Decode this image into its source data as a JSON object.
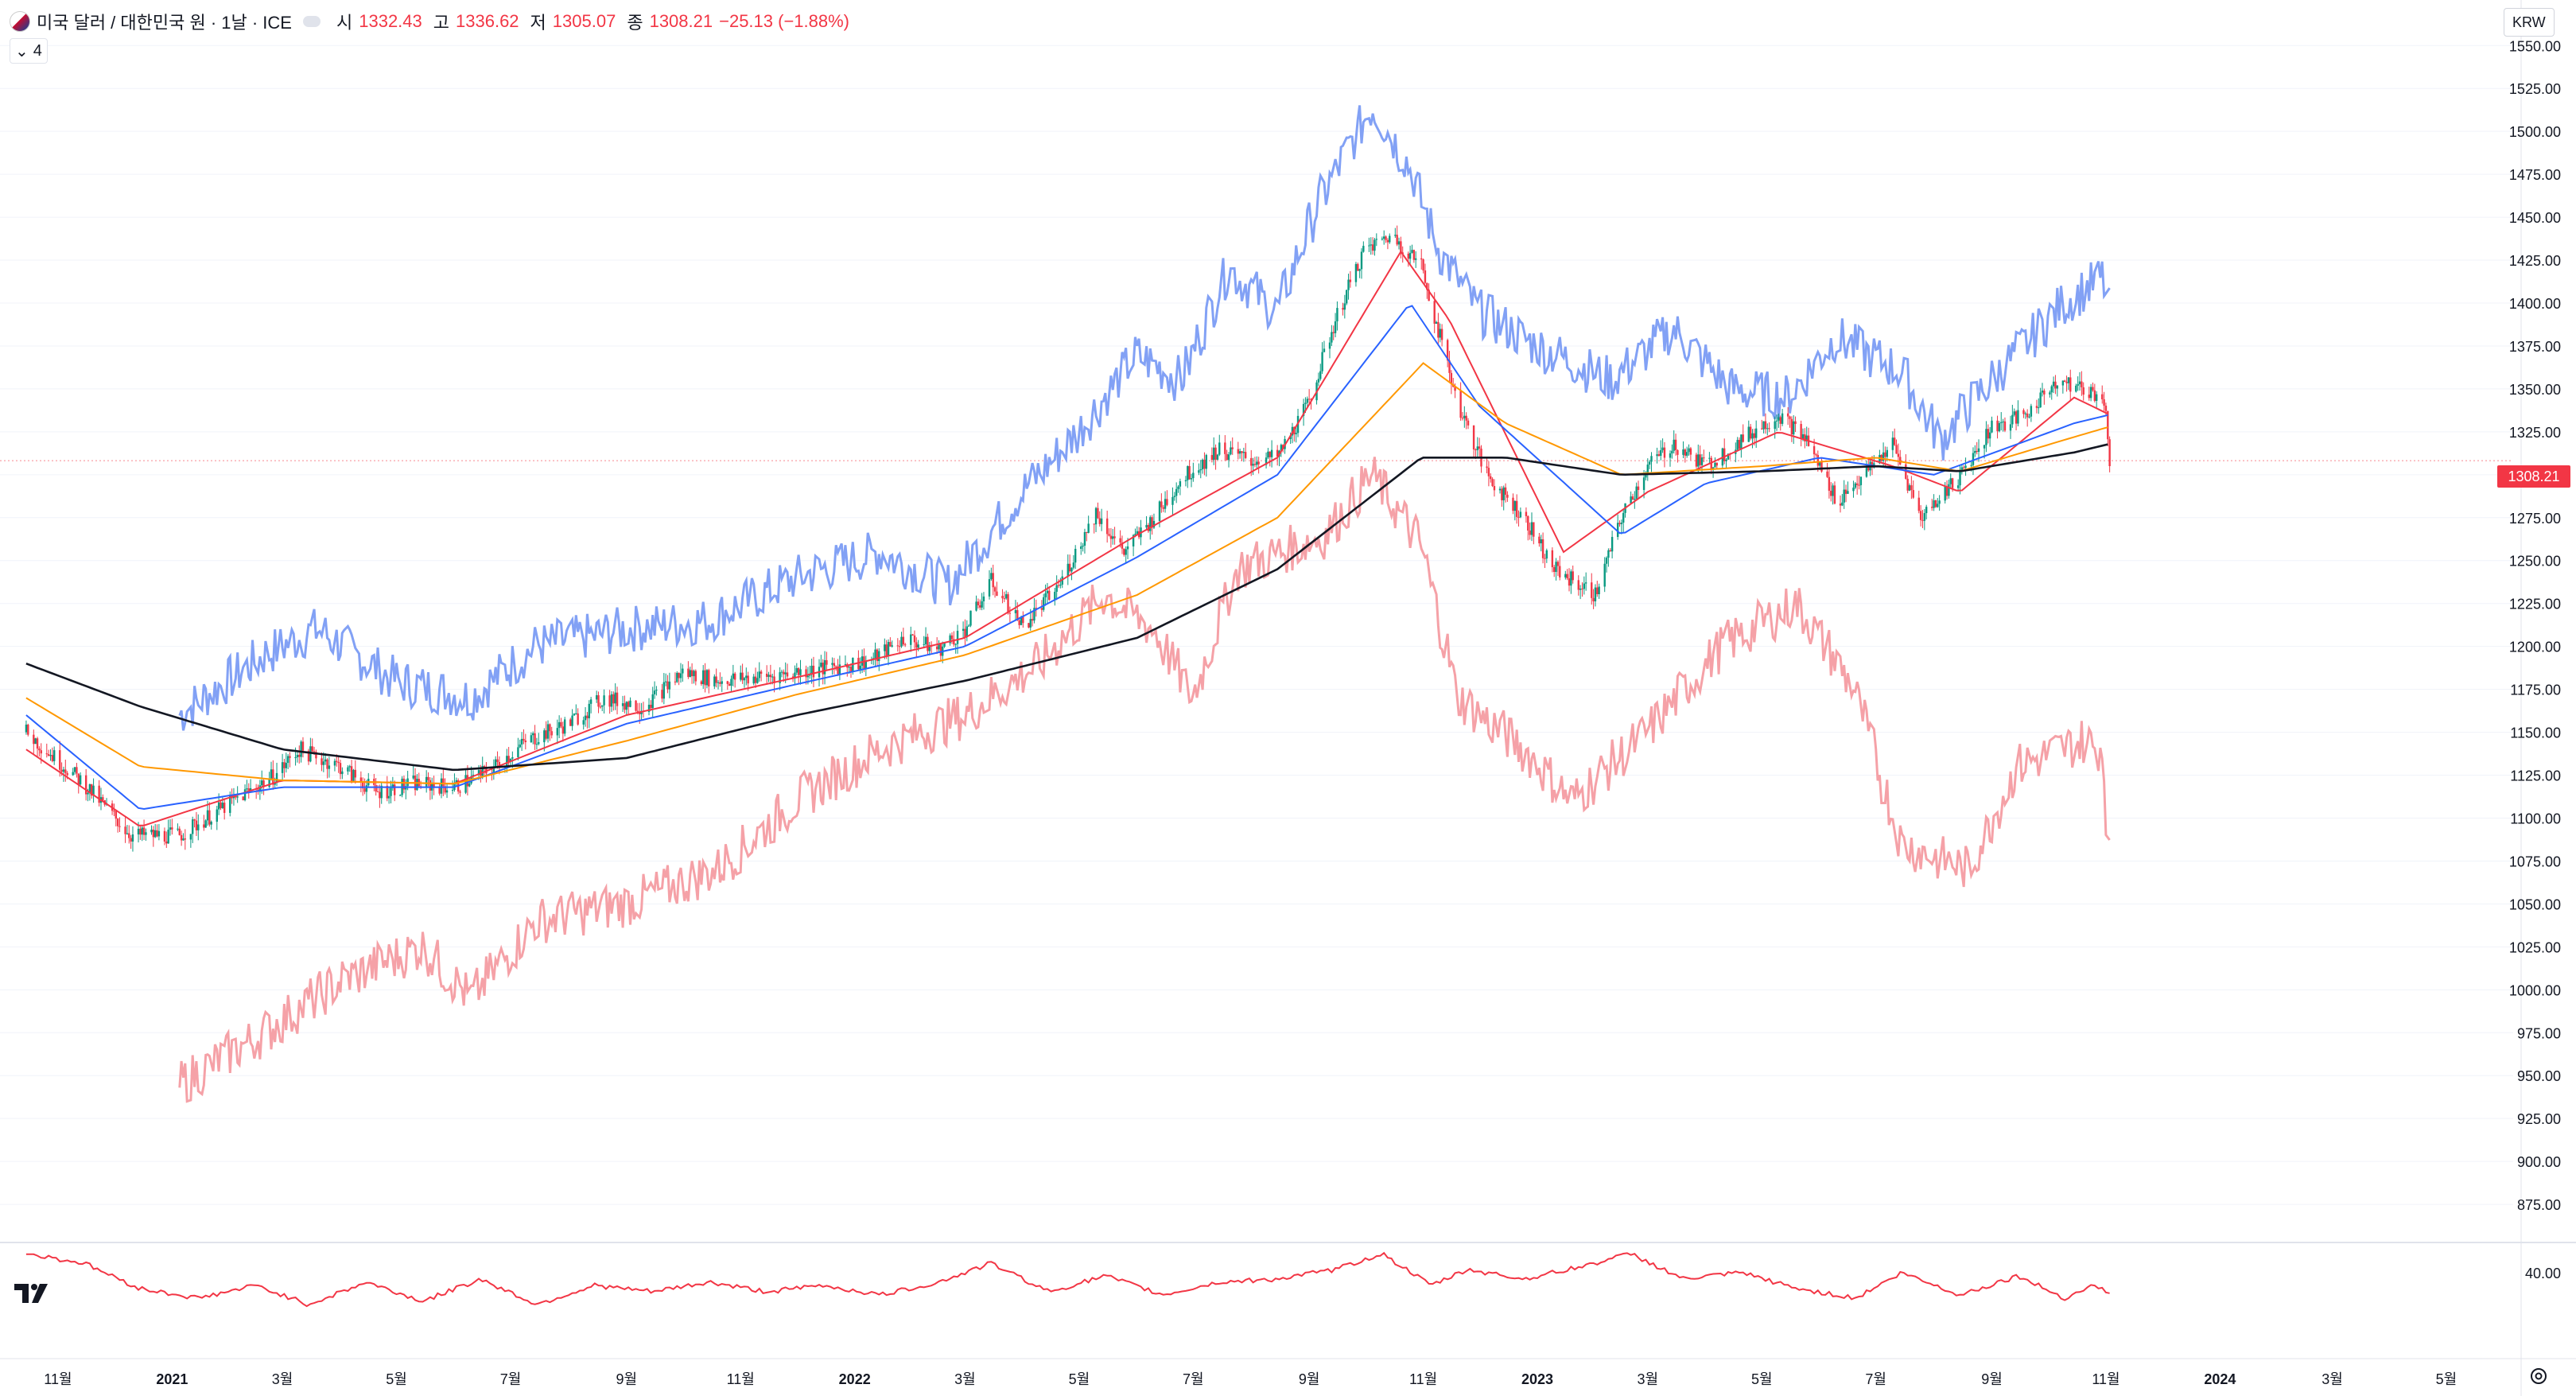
{
  "header": {
    "title": "미국 달러 / 대한민국 원 · 1날 · ICE",
    "ohlc": [
      {
        "label": "시",
        "value": "1332.43"
      },
      {
        "label": "고",
        "value": "1336.62"
      },
      {
        "label": "저",
        "value": "1305.07"
      },
      {
        "label": "종",
        "value": "1308.21"
      }
    ],
    "change": "−25.13 (−1.88%)",
    "indicator_count": "4",
    "collapse_icon": "chevron-down-icon",
    "flag_icon": "us-kr-flag-icon"
  },
  "currency_button": "KRW",
  "last_price": "1308.21",
  "colors": {
    "up": "#089981",
    "down": "#f23645",
    "ma_red": "#f23645",
    "ma_blue": "#2962ff",
    "ma_orange": "#ff9800",
    "ma_black": "#131722",
    "compare_blue": "#7b9cf4",
    "compare_red": "#f49ca2",
    "oscillator": "#f23645"
  },
  "chart_data": {
    "type": "candlestick",
    "y_axis_label": "KRW",
    "ylim": [
      863,
      1558
    ],
    "y_ticks": [
      "1550.00",
      "1525.00",
      "1500.00",
      "1475.00",
      "1450.00",
      "1425.00",
      "1400.00",
      "1375.00",
      "1350.00",
      "1325.00",
      "1300.00",
      "1275.00",
      "1250.00",
      "1225.00",
      "1200.00",
      "1175.00",
      "1150.00",
      "1125.00",
      "1100.00",
      "1075.00",
      "1050.00",
      "1025.00",
      "1000.00",
      "975.00",
      "950.00",
      "925.00",
      "900.00",
      "875.00"
    ],
    "x_ticks": [
      {
        "label": "11월",
        "date": "2020-11"
      },
      {
        "label": "2021",
        "date": "2021-01"
      },
      {
        "label": "3월",
        "date": "2021-03"
      },
      {
        "label": "5월",
        "date": "2021-05"
      },
      {
        "label": "7월",
        "date": "2021-07"
      },
      {
        "label": "9월",
        "date": "2021-09"
      },
      {
        "label": "11월",
        "date": "2021-11"
      },
      {
        "label": "2022",
        "date": "2022-01"
      },
      {
        "label": "3월",
        "date": "2022-03"
      },
      {
        "label": "5월",
        "date": "2022-05"
      },
      {
        "label": "7월",
        "date": "2022-07"
      },
      {
        "label": "9월",
        "date": "2022-09"
      },
      {
        "label": "11월",
        "date": "2022-11"
      },
      {
        "label": "2023",
        "date": "2023-01"
      },
      {
        "label": "3월",
        "date": "2023-03"
      },
      {
        "label": "5월",
        "date": "2023-05"
      },
      {
        "label": "7월",
        "date": "2023-07"
      },
      {
        "label": "9월",
        "date": "2023-09"
      },
      {
        "label": "11월",
        "date": "2023-11"
      },
      {
        "label": "2024",
        "date": "2024-01"
      },
      {
        "label": "3월",
        "date": "2024-03"
      },
      {
        "label": "5월",
        "date": "2024-05"
      }
    ],
    "price_path": [
      [
        "2020-10-15",
        1150
      ],
      [
        "2020-11-15",
        1120
      ],
      [
        "2020-12-10",
        1090
      ],
      [
        "2021-01-05",
        1090
      ],
      [
        "2021-02-10",
        1115
      ],
      [
        "2021-02-25",
        1125
      ],
      [
        "2021-03-10",
        1140
      ],
      [
        "2021-04-01",
        1130
      ],
      [
        "2021-04-20",
        1115
      ],
      [
        "2021-05-10",
        1120
      ],
      [
        "2021-06-01",
        1118
      ],
      [
        "2021-06-20",
        1128
      ],
      [
        "2021-07-10",
        1145
      ],
      [
        "2021-08-01",
        1155
      ],
      [
        "2021-08-20",
        1170
      ],
      [
        "2021-09-10",
        1165
      ],
      [
        "2021-10-01",
        1185
      ],
      [
        "2021-10-20",
        1180
      ],
      [
        "2021-11-10",
        1182
      ],
      [
        "2021-12-01",
        1185
      ],
      [
        "2021-12-20",
        1188
      ],
      [
        "2022-01-10",
        1192
      ],
      [
        "2022-01-28",
        1205
      ],
      [
        "2022-02-15",
        1198
      ],
      [
        "2022-03-01",
        1210
      ],
      [
        "2022-03-15",
        1238
      ],
      [
        "2022-04-01",
        1212
      ],
      [
        "2022-04-20",
        1235
      ],
      [
        "2022-05-10",
        1278
      ],
      [
        "2022-05-25",
        1255
      ],
      [
        "2022-06-10",
        1275
      ],
      [
        "2022-06-25",
        1298
      ],
      [
        "2022-07-15",
        1315
      ],
      [
        "2022-08-01",
        1308
      ],
      [
        "2022-08-15",
        1310
      ],
      [
        "2022-08-31",
        1340
      ],
      [
        "2022-09-15",
        1390
      ],
      [
        "2022-09-30",
        1430
      ],
      [
        "2022-10-15",
        1440
      ],
      [
        "2022-10-31",
        1422
      ],
      [
        "2022-11-10",
        1380
      ],
      [
        "2022-11-20",
        1340
      ],
      [
        "2022-12-05",
        1300
      ],
      [
        "2022-12-25",
        1275
      ],
      [
        "2023-01-10",
        1245
      ],
      [
        "2023-02-01",
        1230
      ],
      [
        "2023-02-15",
        1275
      ],
      [
        "2023-03-01",
        1305
      ],
      [
        "2023-03-15",
        1318
      ],
      [
        "2023-04-01",
        1305
      ],
      [
        "2023-04-20",
        1320
      ],
      [
        "2023-05-10",
        1335
      ],
      [
        "2023-05-25",
        1320
      ],
      [
        "2023-06-10",
        1285
      ],
      [
        "2023-06-25",
        1300
      ],
      [
        "2023-07-10",
        1318
      ],
      [
        "2023-07-25",
        1275
      ],
      [
        "2023-08-15",
        1300
      ],
      [
        "2023-09-01",
        1328
      ],
      [
        "2023-09-20",
        1335
      ],
      [
        "2023-10-05",
        1355
      ],
      [
        "2023-10-20",
        1350
      ],
      [
        "2023-10-31",
        1345
      ],
      [
        "2023-11-03",
        1308
      ]
    ],
    "moving_averages": [
      {
        "color": "#f23645",
        "path": [
          [
            "2020-10-15",
            1140
          ],
          [
            "2020-12-15",
            1095
          ],
          [
            "2021-03-01",
            1122
          ],
          [
            "2021-06-01",
            1120
          ],
          [
            "2021-09-01",
            1160
          ],
          [
            "2021-12-01",
            1182
          ],
          [
            "2022-03-01",
            1205
          ],
          [
            "2022-06-01",
            1265
          ],
          [
            "2022-08-15",
            1310
          ],
          [
            "2022-10-20",
            1430
          ],
          [
            "2022-11-15",
            1390
          ],
          [
            "2023-01-15",
            1255
          ],
          [
            "2023-03-01",
            1290
          ],
          [
            "2023-05-10",
            1325
          ],
          [
            "2023-07-10",
            1305
          ],
          [
            "2023-08-15",
            1290
          ],
          [
            "2023-10-15",
            1345
          ],
          [
            "2023-11-03",
            1335
          ]
        ]
      },
      {
        "color": "#2962ff",
        "path": [
          [
            "2020-10-15",
            1160
          ],
          [
            "2020-12-15",
            1105
          ],
          [
            "2021-03-01",
            1118
          ],
          [
            "2021-06-01",
            1118
          ],
          [
            "2021-09-01",
            1155
          ],
          [
            "2021-12-01",
            1178
          ],
          [
            "2022-03-01",
            1200
          ],
          [
            "2022-06-01",
            1252
          ],
          [
            "2022-08-15",
            1300
          ],
          [
            "2022-10-25",
            1400
          ],
          [
            "2022-12-01",
            1340
          ],
          [
            "2023-02-15",
            1265
          ],
          [
            "2023-04-01",
            1295
          ],
          [
            "2023-06-01",
            1310
          ],
          [
            "2023-08-01",
            1300
          ],
          [
            "2023-10-15",
            1330
          ],
          [
            "2023-11-03",
            1335
          ]
        ]
      },
      {
        "color": "#ff9800",
        "path": [
          [
            "2020-10-15",
            1170
          ],
          [
            "2020-12-15",
            1130
          ],
          [
            "2021-03-01",
            1122
          ],
          [
            "2021-06-01",
            1120
          ],
          [
            "2021-09-01",
            1145
          ],
          [
            "2021-12-01",
            1172
          ],
          [
            "2022-03-01",
            1195
          ],
          [
            "2022-06-01",
            1230
          ],
          [
            "2022-08-15",
            1275
          ],
          [
            "2022-11-01",
            1365
          ],
          [
            "2022-12-15",
            1330
          ],
          [
            "2023-02-15",
            1300
          ],
          [
            "2023-05-01",
            1305
          ],
          [
            "2023-07-01",
            1310
          ],
          [
            "2023-08-15",
            1302
          ],
          [
            "2023-10-15",
            1322
          ],
          [
            "2023-11-03",
            1328
          ]
        ]
      },
      {
        "color": "#131722",
        "path": [
          [
            "2020-10-15",
            1190
          ],
          [
            "2020-12-15",
            1165
          ],
          [
            "2021-03-01",
            1140
          ],
          [
            "2021-06-01",
            1128
          ],
          [
            "2021-09-01",
            1135
          ],
          [
            "2021-12-01",
            1160
          ],
          [
            "2022-03-01",
            1180
          ],
          [
            "2022-06-01",
            1205
          ],
          [
            "2022-08-15",
            1245
          ],
          [
            "2022-10-31",
            1310
          ],
          [
            "2022-12-15",
            1310
          ],
          [
            "2023-02-15",
            1300
          ],
          [
            "2023-05-01",
            1302
          ],
          [
            "2023-07-01",
            1305
          ],
          [
            "2023-08-15",
            1302
          ],
          [
            "2023-10-15",
            1313
          ],
          [
            "2023-11-03",
            1318
          ]
        ]
      }
    ],
    "compare_series": [
      {
        "color": "#7b9cf4",
        "path": [
          [
            "2021-01-05",
            1160
          ],
          [
            "2021-02-20",
            1195
          ],
          [
            "2021-03-20",
            1210
          ],
          [
            "2021-05-01",
            1180
          ],
          [
            "2021-06-10",
            1170
          ],
          [
            "2021-07-15",
            1200
          ],
          [
            "2021-09-01",
            1210
          ],
          [
            "2021-10-15",
            1215
          ],
          [
            "2021-12-01",
            1240
          ],
          [
            "2022-01-15",
            1255
          ],
          [
            "2022-02-20",
            1235
          ],
          [
            "2022-04-01",
            1290
          ],
          [
            "2022-05-01",
            1325
          ],
          [
            "2022-06-01",
            1370
          ],
          [
            "2022-06-25",
            1355
          ],
          [
            "2022-07-20",
            1420
          ],
          [
            "2022-08-15",
            1395
          ],
          [
            "2022-09-05",
            1455
          ],
          [
            "2022-10-05",
            1515
          ],
          [
            "2022-10-25",
            1480
          ],
          [
            "2022-11-10",
            1430
          ],
          [
            "2022-12-01",
            1395
          ],
          [
            "2023-01-01",
            1375
          ],
          [
            "2023-02-10",
            1355
          ],
          [
            "2023-03-15",
            1385
          ],
          [
            "2023-04-15",
            1350
          ],
          [
            "2023-05-15",
            1345
          ],
          [
            "2023-06-10",
            1380
          ],
          [
            "2023-07-15",
            1360
          ],
          [
            "2023-08-05",
            1320
          ],
          [
            "2023-09-01",
            1355
          ],
          [
            "2023-10-10",
            1400
          ],
          [
            "2023-10-31",
            1415
          ],
          [
            "2023-11-03",
            1395
          ]
        ]
      },
      {
        "color": "#f49ca2",
        "path": [
          [
            "2021-01-05",
            945
          ],
          [
            "2021-02-20",
            975
          ],
          [
            "2021-04-01",
            1005
          ],
          [
            "2021-05-15",
            1025
          ],
          [
            "2021-06-10",
            995
          ],
          [
            "2021-07-15",
            1040
          ],
          [
            "2021-09-01",
            1050
          ],
          [
            "2021-10-20",
            1070
          ],
          [
            "2021-12-01",
            1110
          ],
          [
            "2022-01-15",
            1140
          ],
          [
            "2022-03-01",
            1160
          ],
          [
            "2022-04-10",
            1190
          ],
          [
            "2022-05-15",
            1230
          ],
          [
            "2022-06-10",
            1210
          ],
          [
            "2022-07-01",
            1170
          ],
          [
            "2022-07-25",
            1245
          ],
          [
            "2022-09-10",
            1265
          ],
          [
            "2022-10-05",
            1300
          ],
          [
            "2022-10-31",
            1260
          ],
          [
            "2022-11-20",
            1170
          ],
          [
            "2022-12-25",
            1140
          ],
          [
            "2023-01-20",
            1110
          ],
          [
            "2023-03-01",
            1150
          ],
          [
            "2023-04-10",
            1200
          ],
          [
            "2023-05-20",
            1225
          ],
          [
            "2023-06-20",
            1175
          ],
          [
            "2023-07-15",
            1085
          ],
          [
            "2023-08-20",
            1070
          ],
          [
            "2023-09-15",
            1130
          ],
          [
            "2023-10-20",
            1145
          ],
          [
            "2023-10-31",
            1140
          ],
          [
            "2023-11-03",
            1080
          ]
        ]
      }
    ],
    "oscillator": {
      "y_tick": "40.00",
      "path": [
        [
          "2020-10-15",
          46
        ],
        [
          "2020-11-15",
          43
        ],
        [
          "2020-12-15",
          35
        ],
        [
          "2021-01-15",
          32
        ],
        [
          "2021-02-15",
          36
        ],
        [
          "2021-03-15",
          30
        ],
        [
          "2021-04-15",
          37
        ],
        [
          "2021-05-15",
          31
        ],
        [
          "2021-06-15",
          38
        ],
        [
          "2021-07-15",
          30
        ],
        [
          "2021-08-15",
          36
        ],
        [
          "2021-09-15",
          34
        ],
        [
          "2021-10-15",
          37
        ],
        [
          "2021-11-15",
          34
        ],
        [
          "2021-12-15",
          36
        ],
        [
          "2022-01-15",
          33
        ],
        [
          "2022-02-15",
          37
        ],
        [
          "2022-03-15",
          43
        ],
        [
          "2022-04-15",
          34
        ],
        [
          "2022-05-15",
          39
        ],
        [
          "2022-06-15",
          33
        ],
        [
          "2022-07-15",
          37
        ],
        [
          "2022-08-15",
          38
        ],
        [
          "2022-09-15",
          41
        ],
        [
          "2022-10-10",
          46
        ],
        [
          "2022-11-05",
          36
        ],
        [
          "2022-11-25",
          41
        ],
        [
          "2022-12-25",
          38
        ],
        [
          "2023-01-25",
          42
        ],
        [
          "2023-02-20",
          46
        ],
        [
          "2023-03-20",
          38
        ],
        [
          "2023-04-20",
          40
        ],
        [
          "2023-05-20",
          35
        ],
        [
          "2023-06-20",
          32
        ],
        [
          "2023-07-15",
          40
        ],
        [
          "2023-08-15",
          33
        ],
        [
          "2023-09-15",
          39
        ],
        [
          "2023-10-10",
          32
        ],
        [
          "2023-10-25",
          36
        ],
        [
          "2023-11-03",
          34
        ]
      ]
    }
  }
}
